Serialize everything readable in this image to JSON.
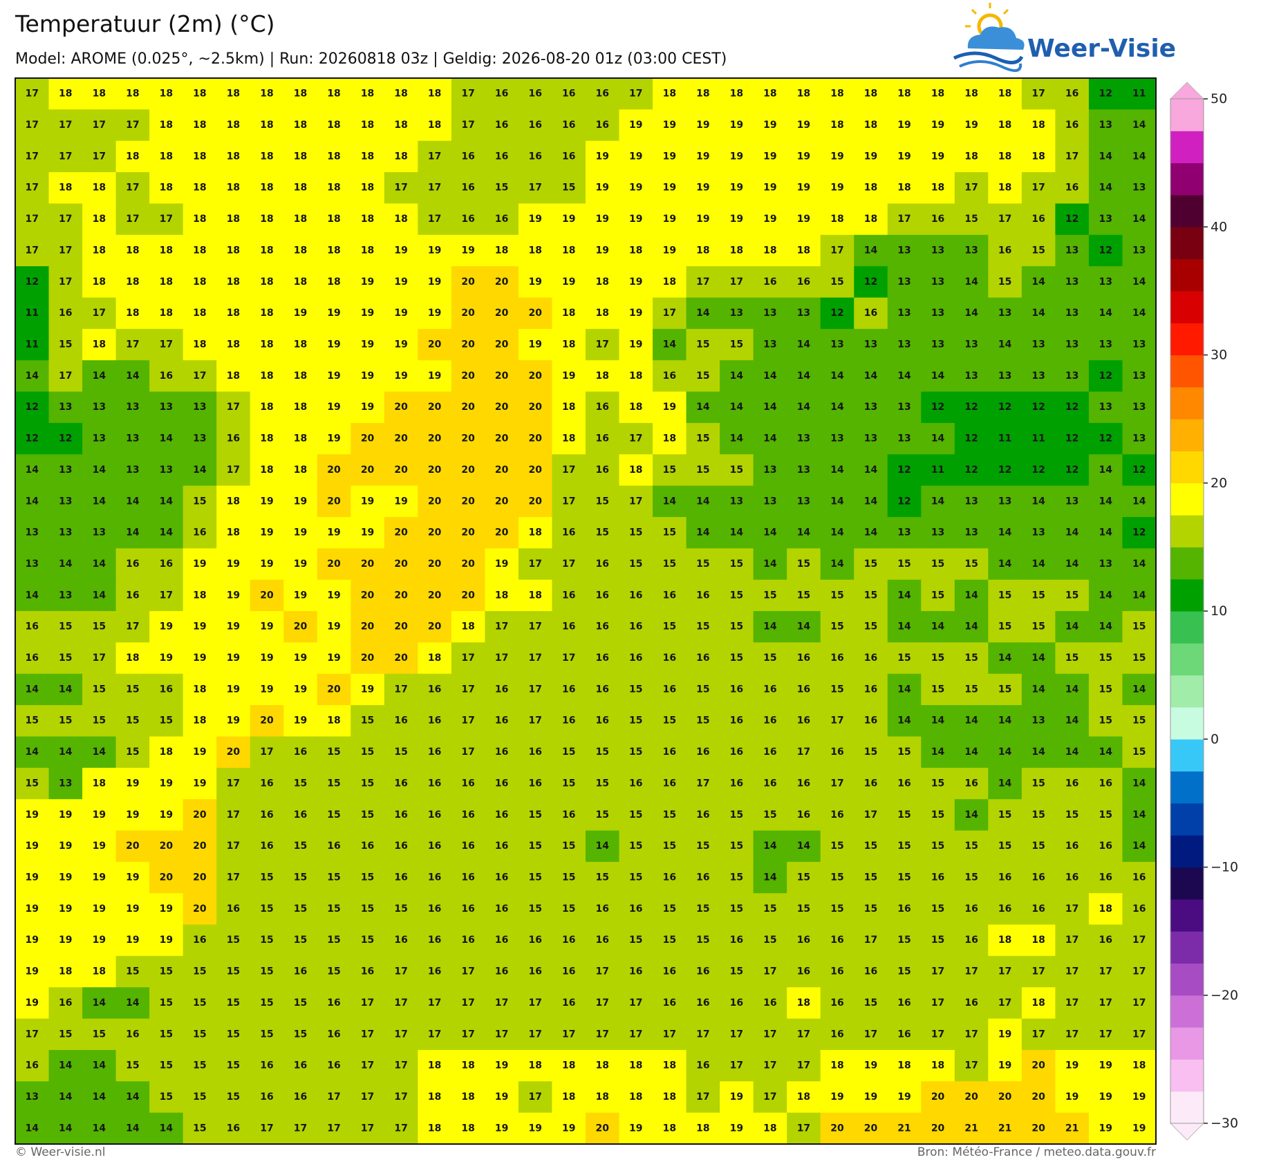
{
  "header": {
    "title": "Temperatuur (2m) (°C)",
    "subtitle": "Model: AROME (0.025°, ~2.5km)  |  Run: 20260818 03z  |  Geldig: 2026-08-20 01z (03:00 CEST)",
    "logo": "Weer-Visie"
  },
  "grid": {
    "values": [
      [
        17,
        18,
        18,
        18,
        18,
        18,
        18,
        18,
        18,
        18,
        18,
        18,
        18,
        17,
        16,
        16,
        16,
        16,
        17,
        18,
        18,
        18,
        18,
        18,
        18,
        18,
        18,
        18,
        18,
        18,
        17,
        16,
        12,
        11
      ],
      [
        17,
        17,
        17,
        17,
        18,
        18,
        18,
        18,
        18,
        18,
        18,
        18,
        18,
        17,
        16,
        16,
        16,
        16,
        19,
        19,
        19,
        19,
        19,
        19,
        18,
        18,
        19,
        19,
        19,
        18,
        18,
        16,
        13,
        14
      ],
      [
        17,
        17,
        17,
        18,
        18,
        18,
        18,
        18,
        18,
        18,
        18,
        18,
        17,
        16,
        16,
        16,
        16,
        19,
        19,
        19,
        19,
        19,
        19,
        19,
        19,
        19,
        19,
        19,
        18,
        18,
        18,
        17,
        14,
        14
      ],
      [
        17,
        18,
        18,
        17,
        18,
        18,
        18,
        18,
        18,
        18,
        18,
        17,
        17,
        16,
        15,
        17,
        15,
        19,
        19,
        19,
        19,
        19,
        19,
        19,
        19,
        18,
        18,
        18,
        17,
        18,
        17,
        16,
        14,
        13
      ],
      [
        17,
        17,
        18,
        17,
        17,
        18,
        18,
        18,
        18,
        18,
        18,
        18,
        17,
        16,
        16,
        19,
        19,
        19,
        19,
        19,
        19,
        19,
        19,
        19,
        18,
        18,
        17,
        16,
        15,
        17,
        16,
        12,
        13,
        14
      ],
      [
        17,
        17,
        18,
        18,
        18,
        18,
        18,
        18,
        18,
        18,
        18,
        19,
        19,
        19,
        18,
        18,
        18,
        19,
        18,
        19,
        18,
        18,
        18,
        18,
        17,
        14,
        13,
        13,
        13,
        16,
        15,
        13,
        12,
        13
      ],
      [
        12,
        17,
        18,
        18,
        18,
        18,
        18,
        18,
        18,
        18,
        19,
        19,
        19,
        20,
        20,
        19,
        19,
        18,
        19,
        18,
        17,
        17,
        16,
        16,
        15,
        12,
        13,
        13,
        14,
        15,
        14,
        13,
        13,
        14
      ],
      [
        11,
        16,
        17,
        18,
        18,
        18,
        18,
        18,
        19,
        19,
        19,
        19,
        19,
        20,
        20,
        20,
        18,
        18,
        19,
        17,
        14,
        13,
        13,
        13,
        12,
        16,
        13,
        13,
        14,
        13,
        14,
        13,
        14,
        14
      ],
      [
        11,
        15,
        18,
        17,
        17,
        18,
        18,
        18,
        18,
        19,
        19,
        19,
        20,
        20,
        20,
        19,
        18,
        17,
        19,
        14,
        15,
        15,
        13,
        14,
        13,
        13,
        13,
        13,
        13,
        14,
        13,
        13,
        13,
        13
      ],
      [
        14,
        17,
        14,
        14,
        16,
        17,
        18,
        18,
        18,
        19,
        19,
        19,
        19,
        20,
        20,
        20,
        19,
        18,
        18,
        16,
        15,
        14,
        14,
        14,
        14,
        14,
        14,
        14,
        13,
        13,
        13,
        13,
        12,
        13
      ],
      [
        12,
        13,
        13,
        13,
        13,
        13,
        17,
        18,
        18,
        19,
        19,
        20,
        20,
        20,
        20,
        20,
        18,
        16,
        18,
        19,
        14,
        14,
        14,
        14,
        14,
        13,
        13,
        12,
        12,
        12,
        12,
        12,
        13,
        13
      ],
      [
        12,
        12,
        13,
        13,
        14,
        13,
        16,
        18,
        18,
        19,
        20,
        20,
        20,
        20,
        20,
        20,
        18,
        16,
        17,
        18,
        15,
        14,
        14,
        13,
        13,
        13,
        13,
        14,
        12,
        11,
        11,
        12,
        12,
        13
      ],
      [
        14,
        13,
        14,
        13,
        13,
        14,
        17,
        18,
        18,
        20,
        20,
        20,
        20,
        20,
        20,
        20,
        17,
        16,
        18,
        15,
        15,
        15,
        13,
        13,
        14,
        14,
        12,
        11,
        12,
        12,
        12,
        12,
        14,
        12
      ],
      [
        14,
        13,
        14,
        14,
        14,
        15,
        18,
        19,
        19,
        20,
        19,
        19,
        20,
        20,
        20,
        20,
        17,
        15,
        17,
        14,
        14,
        13,
        13,
        13,
        14,
        14,
        12,
        14,
        13,
        13,
        14,
        13,
        14,
        14
      ],
      [
        13,
        13,
        13,
        14,
        14,
        16,
        18,
        19,
        19,
        19,
        19,
        20,
        20,
        20,
        20,
        18,
        16,
        15,
        15,
        15,
        14,
        14,
        14,
        14,
        14,
        14,
        13,
        13,
        13,
        14,
        13,
        14,
        14,
        12
      ],
      [
        13,
        14,
        14,
        16,
        16,
        19,
        19,
        19,
        19,
        20,
        20,
        20,
        20,
        20,
        19,
        17,
        17,
        16,
        15,
        15,
        15,
        15,
        14,
        15,
        14,
        15,
        15,
        15,
        15,
        14,
        14,
        14,
        13,
        14
      ],
      [
        14,
        13,
        14,
        16,
        17,
        18,
        19,
        20,
        19,
        19,
        20,
        20,
        20,
        20,
        18,
        18,
        16,
        16,
        16,
        16,
        16,
        15,
        15,
        15,
        15,
        15,
        14,
        15,
        14,
        15,
        15,
        15,
        14,
        14
      ],
      [
        16,
        15,
        15,
        17,
        19,
        19,
        19,
        19,
        20,
        19,
        20,
        20,
        20,
        18,
        17,
        17,
        16,
        16,
        16,
        15,
        15,
        15,
        14,
        14,
        15,
        15,
        14,
        14,
        14,
        15,
        15,
        14,
        14,
        15
      ],
      [
        16,
        15,
        17,
        18,
        19,
        19,
        19,
        19,
        19,
        19,
        20,
        20,
        18,
        17,
        17,
        17,
        17,
        16,
        16,
        16,
        16,
        15,
        15,
        16,
        16,
        16,
        15,
        15,
        15,
        14,
        14,
        15,
        15,
        15
      ],
      [
        14,
        14,
        15,
        15,
        16,
        18,
        19,
        19,
        19,
        20,
        19,
        17,
        16,
        17,
        16,
        17,
        16,
        16,
        15,
        16,
        15,
        16,
        16,
        16,
        15,
        16,
        14,
        15,
        15,
        15,
        14,
        14,
        15,
        14
      ],
      [
        15,
        15,
        15,
        15,
        15,
        18,
        19,
        20,
        19,
        18,
        15,
        16,
        16,
        17,
        16,
        17,
        16,
        16,
        15,
        15,
        15,
        16,
        16,
        16,
        17,
        16,
        14,
        14,
        14,
        14,
        13,
        14,
        15,
        15
      ],
      [
        14,
        14,
        14,
        15,
        18,
        19,
        20,
        17,
        16,
        15,
        15,
        15,
        16,
        17,
        16,
        16,
        15,
        15,
        15,
        16,
        16,
        16,
        16,
        17,
        16,
        15,
        15,
        14,
        14,
        14,
        14,
        14,
        14,
        15
      ],
      [
        15,
        13,
        18,
        19,
        19,
        19,
        17,
        16,
        15,
        15,
        15,
        16,
        16,
        16,
        16,
        16,
        15,
        15,
        16,
        16,
        17,
        16,
        16,
        16,
        17,
        16,
        16,
        15,
        16,
        14,
        15,
        16,
        16,
        14
      ],
      [
        19,
        19,
        19,
        19,
        19,
        20,
        17,
        16,
        16,
        15,
        15,
        16,
        16,
        16,
        16,
        15,
        16,
        15,
        15,
        15,
        16,
        15,
        15,
        16,
        16,
        17,
        15,
        15,
        14,
        15,
        15,
        15,
        15,
        14
      ],
      [
        19,
        19,
        19,
        20,
        20,
        20,
        17,
        16,
        15,
        16,
        16,
        16,
        16,
        16,
        16,
        15,
        15,
        14,
        15,
        15,
        15,
        15,
        14,
        14,
        15,
        15,
        15,
        15,
        15,
        15,
        15,
        16,
        16,
        14
      ],
      [
        19,
        19,
        19,
        19,
        20,
        20,
        17,
        15,
        15,
        15,
        15,
        16,
        16,
        16,
        16,
        15,
        15,
        15,
        15,
        16,
        16,
        15,
        14,
        15,
        15,
        15,
        15,
        16,
        15,
        16,
        16,
        16,
        16,
        16
      ],
      [
        19,
        19,
        19,
        19,
        19,
        20,
        16,
        15,
        15,
        15,
        15,
        15,
        16,
        16,
        16,
        15,
        15,
        16,
        16,
        15,
        15,
        15,
        15,
        15,
        15,
        15,
        16,
        15,
        16,
        16,
        16,
        17,
        18,
        16
      ],
      [
        19,
        19,
        19,
        19,
        19,
        16,
        15,
        15,
        15,
        15,
        15,
        16,
        16,
        16,
        16,
        16,
        16,
        16,
        15,
        15,
        15,
        16,
        15,
        16,
        16,
        17,
        15,
        15,
        16,
        18,
        18,
        17,
        16,
        17
      ],
      [
        19,
        18,
        18,
        15,
        15,
        15,
        15,
        15,
        16,
        15,
        16,
        17,
        16,
        17,
        16,
        16,
        16,
        17,
        16,
        16,
        16,
        15,
        17,
        16,
        16,
        16,
        15,
        17,
        17,
        17,
        17,
        17,
        17,
        17
      ],
      [
        19,
        16,
        14,
        14,
        15,
        15,
        15,
        15,
        15,
        16,
        17,
        17,
        17,
        17,
        17,
        17,
        16,
        17,
        17,
        16,
        16,
        16,
        16,
        18,
        16,
        15,
        16,
        17,
        16,
        17,
        18,
        17,
        17,
        17
      ],
      [
        17,
        15,
        15,
        16,
        15,
        15,
        15,
        15,
        15,
        16,
        17,
        17,
        17,
        17,
        17,
        17,
        17,
        17,
        17,
        17,
        17,
        17,
        17,
        17,
        16,
        17,
        16,
        17,
        17,
        19,
        17,
        17,
        17,
        17
      ],
      [
        16,
        14,
        14,
        15,
        15,
        15,
        15,
        16,
        16,
        16,
        17,
        17,
        18,
        18,
        19,
        18,
        18,
        18,
        18,
        18,
        16,
        17,
        17,
        17,
        18,
        19,
        18,
        18,
        17,
        19,
        20,
        19,
        19,
        18
      ],
      [
        13,
        14,
        14,
        14,
        15,
        15,
        15,
        16,
        16,
        17,
        17,
        17,
        18,
        18,
        19,
        17,
        18,
        18,
        18,
        18,
        17,
        19,
        17,
        18,
        19,
        19,
        19,
        20,
        20,
        20,
        20,
        19,
        19,
        19
      ],
      [
        14,
        14,
        14,
        14,
        14,
        15,
        16,
        17,
        17,
        17,
        17,
        17,
        18,
        18,
        19,
        19,
        19,
        20,
        19,
        18,
        18,
        19,
        18,
        17,
        20,
        20,
        21,
        20,
        21,
        21,
        20,
        21,
        19,
        19
      ]
    ]
  },
  "colorbar": {
    "lim": [
      -30,
      50
    ],
    "ticks": [
      50,
      40,
      30,
      20,
      10,
      0,
      {
        "value": -10,
        "label": "−10"
      },
      {
        "value": -20,
        "label": "−20"
      },
      {
        "value": -30,
        "label": "−30"
      }
    ],
    "colors": [
      "#fdeaf9",
      "#f8bff0",
      "#e898e4",
      "#cc70d8",
      "#a84cc4",
      "#7c2ca8",
      "#4a0c80",
      "#1c0850",
      "#001a80",
      "#0040a8",
      "#0070c8",
      "#38c8f8",
      "#c8fce0",
      "#a0eca8",
      "#6cd878",
      "#38c050",
      "#00a000",
      "#54b400",
      "#b4d400",
      "#ffff00",
      "#ffd800",
      "#ffb000",
      "#ff8800",
      "#ff5500",
      "#ff1a00",
      "#d80000",
      "#a80000",
      "#780010",
      "#500030",
      "#900070",
      "#d020c0",
      "#f8a8dc"
    ]
  },
  "footer": {
    "left": "© Weer-visie.nl",
    "right": "Bron: Météo-France / meteo.data.gouv.fr"
  }
}
